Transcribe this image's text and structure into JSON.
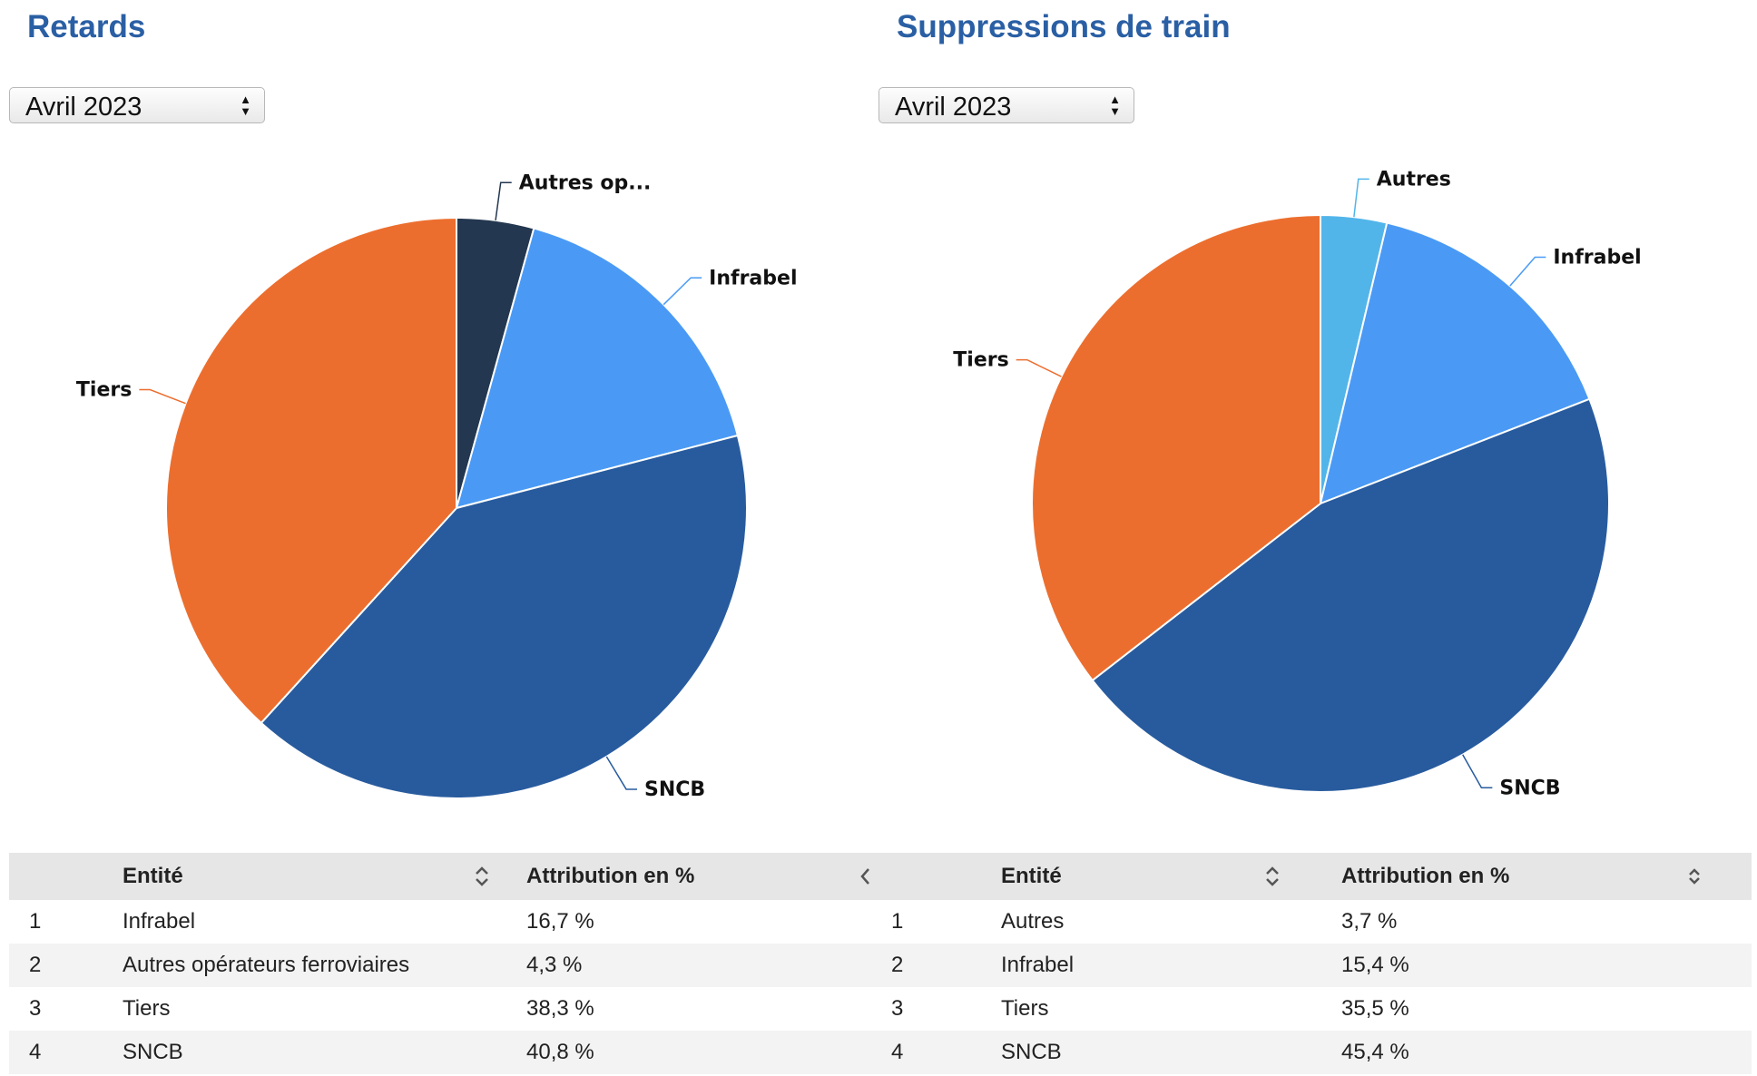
{
  "panels": [
    {
      "title": "Retards",
      "select_value": "Avril 2023",
      "table": {
        "headers": [
          "",
          "Entité",
          "Attribution en %"
        ],
        "rows": [
          {
            "idx": "1",
            "entity": "Infrabel",
            "pct": "16,7 %"
          },
          {
            "idx": "2",
            "entity": "Autres opérateurs ferroviaires",
            "pct": "4,3 %"
          },
          {
            "idx": "3",
            "entity": "Tiers",
            "pct": "38,3 %"
          },
          {
            "idx": "4",
            "entity": "SNCB",
            "pct": "40,8 %"
          }
        ]
      }
    },
    {
      "title": "Suppressions de train",
      "select_value": "Avril 2023",
      "table": {
        "headers": [
          "",
          "Entité",
          "Attribution en %"
        ],
        "rows": [
          {
            "idx": "1",
            "entity": "Autres",
            "pct": "3,7 %"
          },
          {
            "idx": "2",
            "entity": "Infrabel",
            "pct": "15,4 %"
          },
          {
            "idx": "3",
            "entity": "Tiers",
            "pct": "35,5 %"
          },
          {
            "idx": "4",
            "entity": "SNCB",
            "pct": "45,4 %"
          }
        ]
      }
    }
  ],
  "chart_data": [
    {
      "type": "pie",
      "title": "Retards",
      "slices": [
        {
          "label": "Autres op...",
          "value": 4.3,
          "color": "#243750"
        },
        {
          "label": "Infrabel",
          "value": 16.7,
          "color": "#4a9af5"
        },
        {
          "label": "SNCB",
          "value": 40.8,
          "color": "#285b9e"
        },
        {
          "label": "Tiers",
          "value": 38.3,
          "color": "#ec6e2e"
        }
      ]
    },
    {
      "type": "pie",
      "title": "Suppressions de train",
      "slices": [
        {
          "label": "Autres",
          "value": 3.7,
          "color": "#52b5ea"
        },
        {
          "label": "Infrabel",
          "value": 15.4,
          "color": "#4a9af5"
        },
        {
          "label": "SNCB",
          "value": 45.4,
          "color": "#285b9e"
        },
        {
          "label": "Tiers",
          "value": 35.5,
          "color": "#ec6e2e"
        }
      ]
    }
  ],
  "colors": {
    "title": "#2a5fa4",
    "header_bg": "#e6e6e6",
    "stripe_bg": "#f3f3f3"
  }
}
